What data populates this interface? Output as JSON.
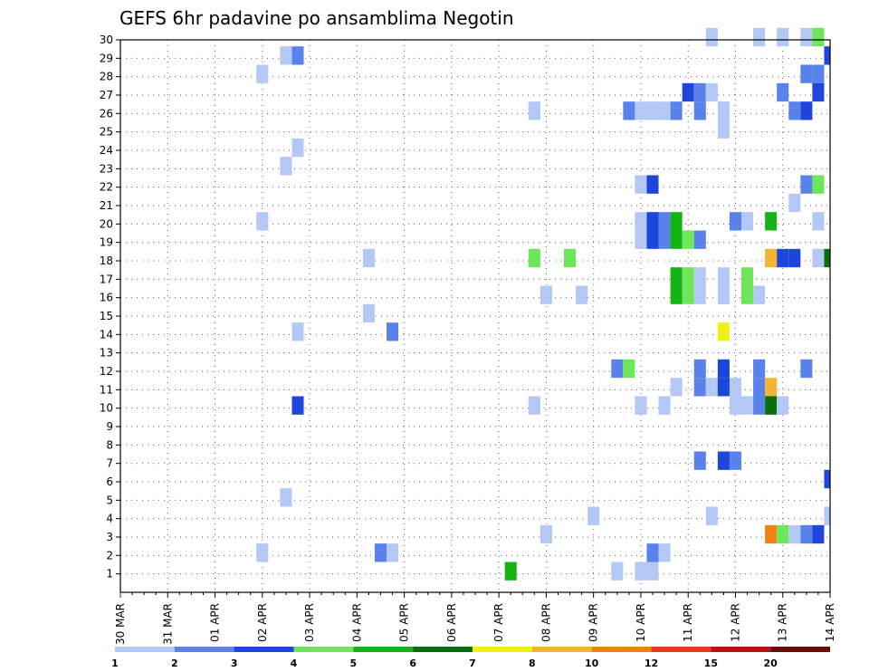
{
  "chart_data": {
    "type": "heatmap",
    "title": "GEFS 6hr padavine po ansamblima Negotin",
    "xlabel": "",
    "ylabel": "",
    "x_tick_labels": [
      "30 MAR",
      "31 MAR",
      "01 APR",
      "02 APR",
      "03 APR",
      "04 APR",
      "05 APR",
      "06 APR",
      "07 APR",
      "08 APR",
      "09 APR",
      "10 APR",
      "11 APR",
      "12 APR",
      "13 APR",
      "14 APR"
    ],
    "x_range": [
      "30 MAR",
      "14 APR"
    ],
    "y_range": [
      0,
      30
    ],
    "y_ticks": [
      1,
      2,
      3,
      4,
      5,
      6,
      7,
      8,
      9,
      10,
      11,
      12,
      13,
      14,
      15,
      16,
      17,
      18,
      19,
      20,
      21,
      22,
      23,
      24,
      25,
      26,
      27,
      28,
      29,
      30
    ],
    "grid": true,
    "color_scale": {
      "colors": [
        "#b4c8f5",
        "#5a82eb",
        "#1e46dc",
        "#6ee65a",
        "#14b414",
        "#0a6e0a",
        "#f0f014",
        "#f5b432",
        "#f08214",
        "#e63c14",
        "#b41414",
        "#6e0a0a"
      ],
      "labels": [
        "1",
        "2",
        "3",
        "4",
        "5",
        "6",
        "7",
        "8",
        "10",
        "12",
        "15",
        "20"
      ],
      "bounds": [
        1,
        2,
        3,
        4,
        5,
        6,
        7,
        8,
        10,
        12,
        15,
        20
      ]
    },
    "cells_x_unit": "days since 30 MAR (6-hourly steps)",
    "cells": [
      {
        "x": 3.0,
        "y": 2,
        "v": 1
      },
      {
        "x": 3.0,
        "y": 20,
        "v": 1
      },
      {
        "x": 3.0,
        "y": 28,
        "v": 1
      },
      {
        "x": 3.5,
        "y": 5,
        "v": 1
      },
      {
        "x": 3.5,
        "y": 23,
        "v": 1
      },
      {
        "x": 3.5,
        "y": 29,
        "v": 1
      },
      {
        "x": 3.75,
        "y": 10,
        "v": 3
      },
      {
        "x": 3.75,
        "y": 14,
        "v": 1
      },
      {
        "x": 3.75,
        "y": 24,
        "v": 1
      },
      {
        "x": 3.75,
        "y": 29,
        "v": 2
      },
      {
        "x": 5.25,
        "y": 15,
        "v": 1
      },
      {
        "x": 5.25,
        "y": 18,
        "v": 1
      },
      {
        "x": 5.5,
        "y": 2,
        "v": 2
      },
      {
        "x": 5.75,
        "y": 2,
        "v": 1
      },
      {
        "x": 5.75,
        "y": 14,
        "v": 2
      },
      {
        "x": 8.25,
        "y": 1,
        "v": 5
      },
      {
        "x": 8.75,
        "y": 10,
        "v": 1
      },
      {
        "x": 8.75,
        "y": 18,
        "v": 4
      },
      {
        "x": 8.75,
        "y": 26,
        "v": 1
      },
      {
        "x": 9.0,
        "y": 3,
        "v": 1
      },
      {
        "x": 9.0,
        "y": 16,
        "v": 1
      },
      {
        "x": 9.5,
        "y": 18,
        "v": 4
      },
      {
        "x": 9.75,
        "y": 16,
        "v": 1
      },
      {
        "x": 10.0,
        "y": 4,
        "v": 1
      },
      {
        "x": 10.5,
        "y": 1,
        "v": 1
      },
      {
        "x": 10.5,
        "y": 12,
        "v": 2
      },
      {
        "x": 10.75,
        "y": 12,
        "v": 4
      },
      {
        "x": 10.75,
        "y": 26,
        "v": 2
      },
      {
        "x": 11.0,
        "y": 1,
        "v": 1
      },
      {
        "x": 11.0,
        "y": 10,
        "v": 1
      },
      {
        "x": 11.0,
        "y": 19,
        "v": 1
      },
      {
        "x": 11.0,
        "y": 20,
        "v": 1
      },
      {
        "x": 11.0,
        "y": 22,
        "v": 1
      },
      {
        "x": 11.0,
        "y": 26,
        "v": 1
      },
      {
        "x": 11.25,
        "y": 1,
        "v": 1
      },
      {
        "x": 11.25,
        "y": 2,
        "v": 2
      },
      {
        "x": 11.25,
        "y": 19,
        "v": 3
      },
      {
        "x": 11.25,
        "y": 20,
        "v": 3
      },
      {
        "x": 11.25,
        "y": 22,
        "v": 3
      },
      {
        "x": 11.25,
        "y": 26,
        "v": 1
      },
      {
        "x": 11.5,
        "y": 2,
        "v": 1
      },
      {
        "x": 11.5,
        "y": 10,
        "v": 1
      },
      {
        "x": 11.5,
        "y": 19,
        "v": 2
      },
      {
        "x": 11.5,
        "y": 20,
        "v": 2
      },
      {
        "x": 11.5,
        "y": 26,
        "v": 1
      },
      {
        "x": 11.75,
        "y": 11,
        "v": 1
      },
      {
        "x": 11.75,
        "y": 16,
        "v": 5
      },
      {
        "x": 11.75,
        "y": 17,
        "v": 5
      },
      {
        "x": 11.75,
        "y": 19,
        "v": 5
      },
      {
        "x": 11.75,
        "y": 20,
        "v": 5
      },
      {
        "x": 11.75,
        "y": 26,
        "v": 2
      },
      {
        "x": 12.0,
        "y": 16,
        "v": 4
      },
      {
        "x": 12.0,
        "y": 17,
        "v": 4
      },
      {
        "x": 12.0,
        "y": 19,
        "v": 4
      },
      {
        "x": 12.0,
        "y": 27,
        "v": 3
      },
      {
        "x": 12.25,
        "y": 7,
        "v": 2
      },
      {
        "x": 12.25,
        "y": 11,
        "v": 2
      },
      {
        "x": 12.25,
        "y": 12,
        "v": 2
      },
      {
        "x": 12.25,
        "y": 16,
        "v": 1
      },
      {
        "x": 12.25,
        "y": 17,
        "v": 1
      },
      {
        "x": 12.25,
        "y": 19,
        "v": 2
      },
      {
        "x": 12.25,
        "y": 26,
        "v": 2
      },
      {
        "x": 12.25,
        "y": 27,
        "v": 2
      },
      {
        "x": 12.5,
        "y": 4,
        "v": 1
      },
      {
        "x": 12.5,
        "y": 11,
        "v": 1
      },
      {
        "x": 12.5,
        "y": 27,
        "v": 1
      },
      {
        "x": 12.5,
        "y": 30,
        "v": 1
      },
      {
        "x": 12.75,
        "y": 7,
        "v": 3
      },
      {
        "x": 12.75,
        "y": 11,
        "v": 3
      },
      {
        "x": 12.75,
        "y": 12,
        "v": 3
      },
      {
        "x": 12.75,
        "y": 14,
        "v": 7
      },
      {
        "x": 12.75,
        "y": 16,
        "v": 1
      },
      {
        "x": 12.75,
        "y": 17,
        "v": 1
      },
      {
        "x": 12.75,
        "y": 25,
        "v": 1
      },
      {
        "x": 12.75,
        "y": 26,
        "v": 1
      },
      {
        "x": 13.0,
        "y": 7,
        "v": 2
      },
      {
        "x": 13.0,
        "y": 10,
        "v": 1
      },
      {
        "x": 13.0,
        "y": 11,
        "v": 1
      },
      {
        "x": 13.0,
        "y": 20,
        "v": 2
      },
      {
        "x": 13.25,
        "y": 10,
        "v": 1
      },
      {
        "x": 13.25,
        "y": 16,
        "v": 4
      },
      {
        "x": 13.25,
        "y": 17,
        "v": 4
      },
      {
        "x": 13.25,
        "y": 20,
        "v": 1
      },
      {
        "x": 13.5,
        "y": 10,
        "v": 2
      },
      {
        "x": 13.5,
        "y": 11,
        "v": 2
      },
      {
        "x": 13.5,
        "y": 12,
        "v": 2
      },
      {
        "x": 13.5,
        "y": 16,
        "v": 1
      },
      {
        "x": 13.5,
        "y": 30,
        "v": 1
      },
      {
        "x": 13.75,
        "y": 3,
        "v": 10
      },
      {
        "x": 13.75,
        "y": 10,
        "v": 6
      },
      {
        "x": 13.75,
        "y": 11,
        "v": 8
      },
      {
        "x": 13.75,
        "y": 18,
        "v": 8
      },
      {
        "x": 13.75,
        "y": 20,
        "v": 5
      },
      {
        "x": 14.0,
        "y": 3,
        "v": 4
      },
      {
        "x": 14.0,
        "y": 10,
        "v": 1
      },
      {
        "x": 14.0,
        "y": 18,
        "v": 3
      },
      {
        "x": 14.0,
        "y": 27,
        "v": 2
      },
      {
        "x": 14.0,
        "y": 30,
        "v": 1
      },
      {
        "x": 14.25,
        "y": 3,
        "v": 1
      },
      {
        "x": 14.25,
        "y": 18,
        "v": 3
      },
      {
        "x": 14.25,
        "y": 21,
        "v": 1
      },
      {
        "x": 14.25,
        "y": 26,
        "v": 2
      },
      {
        "x": 14.5,
        "y": 3,
        "v": 2
      },
      {
        "x": 14.5,
        "y": 12,
        "v": 2
      },
      {
        "x": 14.5,
        "y": 22,
        "v": 2
      },
      {
        "x": 14.5,
        "y": 26,
        "v": 3
      },
      {
        "x": 14.5,
        "y": 28,
        "v": 2
      },
      {
        "x": 14.5,
        "y": 30,
        "v": 1
      },
      {
        "x": 14.75,
        "y": 3,
        "v": 3
      },
      {
        "x": 14.75,
        "y": 18,
        "v": 1
      },
      {
        "x": 14.75,
        "y": 20,
        "v": 1
      },
      {
        "x": 14.75,
        "y": 22,
        "v": 4
      },
      {
        "x": 14.75,
        "y": 27,
        "v": 3
      },
      {
        "x": 14.75,
        "y": 28,
        "v": 2
      },
      {
        "x": 14.75,
        "y": 30,
        "v": 4
      },
      {
        "x": 15.0,
        "y": 4,
        "v": 1
      },
      {
        "x": 15.0,
        "y": 6,
        "v": 3
      },
      {
        "x": 15.0,
        "y": 18,
        "v": 6
      },
      {
        "x": 15.0,
        "y": 29,
        "v": 3
      }
    ]
  }
}
